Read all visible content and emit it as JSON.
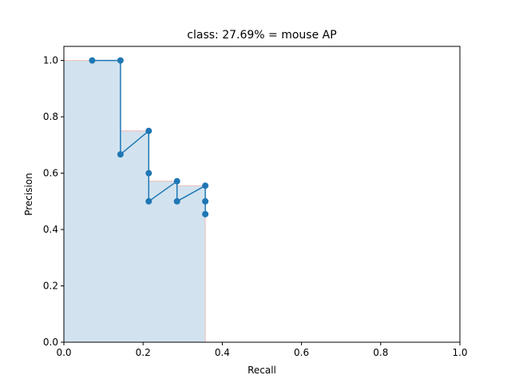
{
  "chart_data": {
    "type": "line",
    "title": "class: 27.69% = mouse AP",
    "xlabel": "Recall",
    "ylabel": "Precision",
    "xlim": [
      0.0,
      1.0
    ],
    "ylim": [
      0.0,
      1.05
    ],
    "x_ticks": [
      "0.0",
      "0.2",
      "0.4",
      "0.6",
      "0.8",
      "1.0"
    ],
    "y_ticks": [
      "0.0",
      "0.2",
      "0.4",
      "0.6",
      "0.8",
      "1.0"
    ],
    "grid": false,
    "legend": "none",
    "series": [
      {
        "points": [
          [
            0.0714,
            1.0
          ],
          [
            0.1429,
            1.0
          ],
          [
            0.1429,
            0.6667
          ],
          [
            0.2143,
            0.75
          ],
          [
            0.2143,
            0.6
          ],
          [
            0.2143,
            0.5
          ],
          [
            0.2857,
            0.5714
          ],
          [
            0.2857,
            0.5
          ],
          [
            0.3571,
            0.5556
          ],
          [
            0.3571,
            0.5
          ],
          [
            0.3571,
            0.4545
          ]
        ],
        "color": "#1f77b4"
      }
    ],
    "interpolated_area": {
      "points": [
        [
          0.0,
          1.0
        ],
        [
          0.1429,
          1.0
        ],
        [
          0.1429,
          0.75
        ],
        [
          0.2143,
          0.75
        ],
        [
          0.2143,
          0.5714
        ],
        [
          0.2857,
          0.5714
        ],
        [
          0.2857,
          0.5556
        ],
        [
          0.3571,
          0.5556
        ],
        [
          0.3571,
          0.0
        ]
      ],
      "fill_color": "#d2e3ef",
      "edge_color": "#f4b9b9"
    }
  }
}
